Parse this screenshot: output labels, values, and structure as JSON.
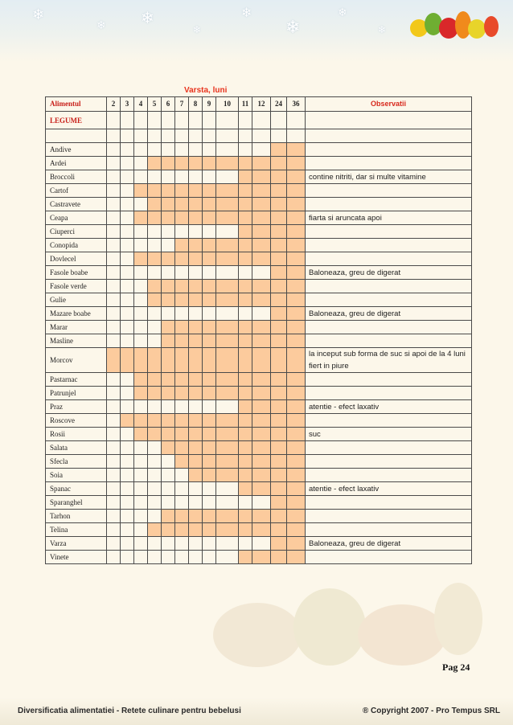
{
  "header": {
    "subtitle": "Varsta, luni"
  },
  "table": {
    "col_aliment": "Alimentul",
    "months": [
      "2",
      "3",
      "4",
      "5",
      "6",
      "7",
      "8",
      "9",
      "10",
      "11",
      "12",
      "24",
      "36"
    ],
    "col_obs": "Observatii",
    "section": "LEGUME",
    "rows": [
      {
        "name": "Andive",
        "start": "24",
        "obs": ""
      },
      {
        "name": "Ardei",
        "start": "5",
        "obs": ""
      },
      {
        "name": "Broccoli",
        "start": "11",
        "obs": "contine nitriti, dar si multe vitamine"
      },
      {
        "name": "Cartof",
        "start": "4",
        "obs": ""
      },
      {
        "name": "Castravete",
        "start": "5",
        "obs": ""
      },
      {
        "name": "Ceapa",
        "start": "4",
        "obs": "fiarta si aruncata apoi"
      },
      {
        "name": "Ciuperci",
        "start": "11",
        "obs": ""
      },
      {
        "name": "Conopida",
        "start": "7",
        "obs": ""
      },
      {
        "name": "Dovlecel",
        "start": "4",
        "obs": ""
      },
      {
        "name": "Fasole boabe",
        "start": "24",
        "obs": "Baloneaza, greu de digerat"
      },
      {
        "name": "Fasole verde",
        "start": "5",
        "obs": ""
      },
      {
        "name": "Gulie",
        "start": "5",
        "obs": ""
      },
      {
        "name": "Mazare boabe",
        "start": "24",
        "obs": "Baloneaza, greu de digerat"
      },
      {
        "name": "Marar",
        "start": "6",
        "obs": ""
      },
      {
        "name": "Masline",
        "start": "6",
        "obs": ""
      },
      {
        "name": "Morcov",
        "start": "2",
        "obs": "la inceput sub forma de suc si apoi de la 4 luni fiert in piure"
      },
      {
        "name": "Pastarnac",
        "start": "4",
        "obs": ""
      },
      {
        "name": "Patrunjel",
        "start": "4",
        "obs": ""
      },
      {
        "name": "Praz",
        "start": "11",
        "obs": "atentie - efect laxativ"
      },
      {
        "name": "Roscove",
        "start": "3",
        "obs": ""
      },
      {
        "name": "Rosii",
        "start": "4",
        "obs": "suc"
      },
      {
        "name": "Salata",
        "start": "6",
        "obs": ""
      },
      {
        "name": "Sfecla",
        "start": "7",
        "obs": ""
      },
      {
        "name": "Soia",
        "start": "8",
        "obs": ""
      },
      {
        "name": "Spanac",
        "start": "11",
        "obs": "atentie - efect laxativ"
      },
      {
        "name": "Sparanghel",
        "start": "24",
        "obs": ""
      },
      {
        "name": "Tarhon",
        "start": "6",
        "obs": ""
      },
      {
        "name": "Telina",
        "start": "5",
        "obs": ""
      },
      {
        "name": "Varza",
        "start": "24",
        "obs": "Baloneaza, greu de digerat"
      },
      {
        "name": "Vinete",
        "start": "11",
        "obs": ""
      }
    ]
  },
  "page_number": "Pag  24",
  "footer": {
    "left": "Diversificatia alimentatiei - Retete culinare pentru bebelusi",
    "right": "® Copyright 2007 - Pro Tempus SRL"
  },
  "colors": {
    "filled": "#fccb9d",
    "accent": "#e8321c"
  },
  "icons": [
    "snowflake-icon",
    "vegetables-illustration"
  ]
}
